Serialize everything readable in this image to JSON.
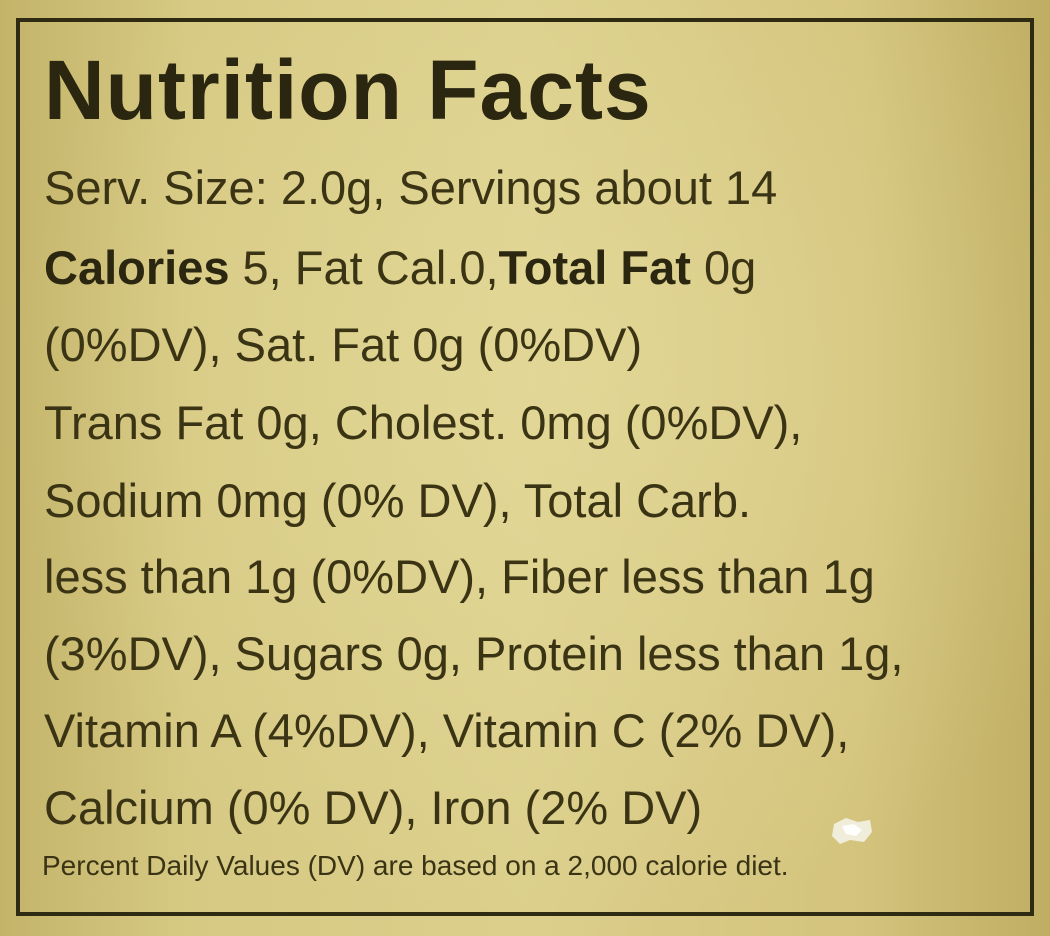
{
  "label": {
    "title": "Nutrition Facts",
    "line1": "Serv. Size: 2.0g, Servings about 14",
    "line2": {
      "calories_label": "Calories",
      "calories_rest": " 5, Fat Cal.0,",
      "total_fat_label": "Total Fat",
      "total_fat_rest": " 0g"
    },
    "line3": "(0%DV), Sat. Fat 0g (0%DV)",
    "line4": "Trans Fat 0g, Cholest. 0mg (0%DV),",
    "line5": "Sodium 0mg (0% DV), Total Carb.",
    "line6": "less than 1g (0%DV), Fiber less than 1g",
    "line7": "(3%DV), Sugars 0g, Protein less than 1g,",
    "line8": "Vitamin A (4%DV), Vitamin C (2% DV),",
    "line9": "Calcium (0% DV), Iron (2% DV)",
    "footnote": "Percent Daily Values (DV) are based on a 2,000 calorie diet."
  },
  "colors": {
    "label_background": "#d6c983",
    "ink": "#2a2610",
    "border": "#2f2a12"
  }
}
